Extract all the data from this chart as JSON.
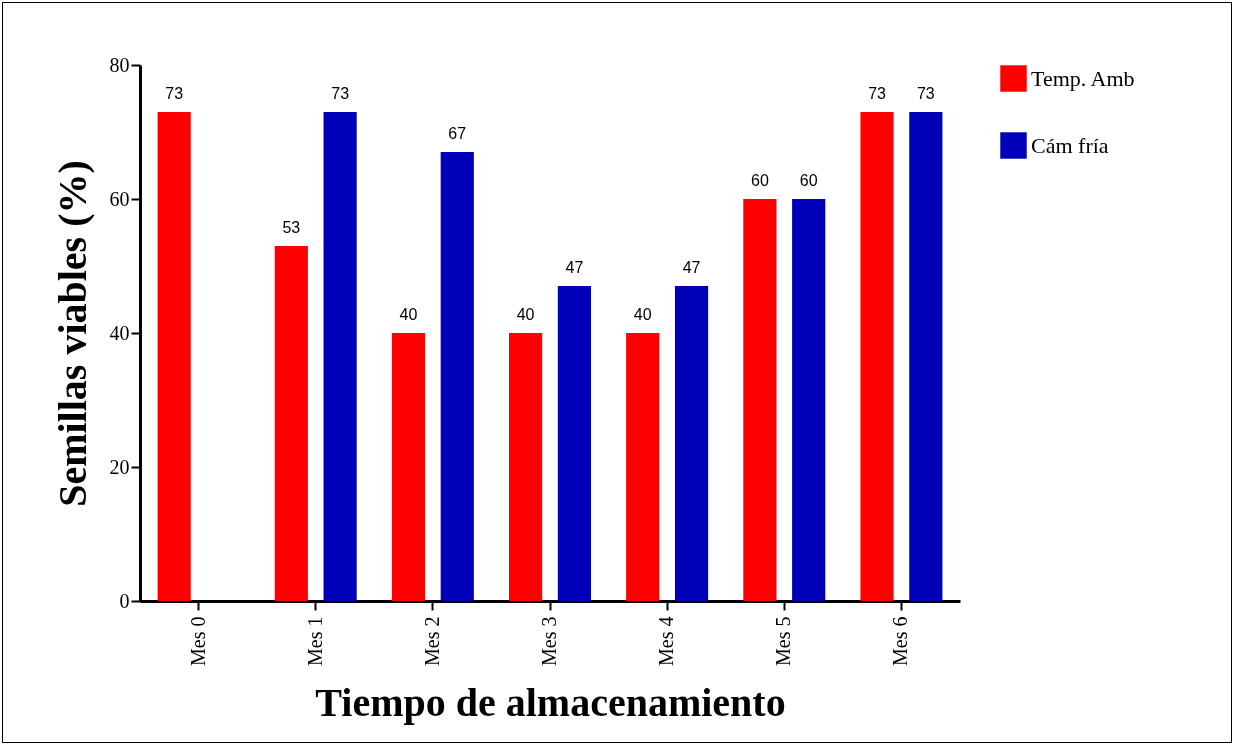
{
  "chart_data": {
    "type": "bar",
    "xlabel": "Tiempo de almacenamiento",
    "ylabel": "Semillas viables (%)",
    "categories": [
      "Mes 0",
      "Mes 1",
      "Mes 2",
      "Mes 3",
      "Mes 4",
      "Mes 5",
      "Mes 6"
    ],
    "series": [
      {
        "name": "Temp. Amb",
        "color": "#ff0000",
        "values": [
          73,
          53,
          40,
          40,
          40,
          60,
          73
        ]
      },
      {
        "name": "Cám fría",
        "color": "#0000bb",
        "values": [
          null,
          73,
          67,
          47,
          47,
          60,
          73
        ]
      }
    ],
    "ylim": [
      0,
      80
    ],
    "yticks": [
      0,
      20,
      40,
      60,
      80
    ],
    "grid": false,
    "legend": "right",
    "data_labels": true
  }
}
